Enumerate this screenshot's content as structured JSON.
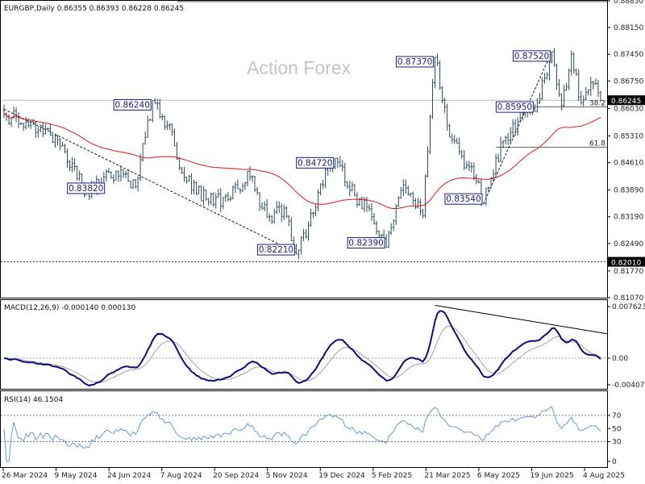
{
  "header": {
    "symbol_line": "EURGBP,Daily  0.86355 0.86393 0.86228 0.86245",
    "watermark": "Action Forex"
  },
  "colors": {
    "candle": "#2c4a5a",
    "ma": "#d81818",
    "macd": "#0c0c7c",
    "signal": "#999999",
    "rsi": "#5a8fd0",
    "label_border": "#1a1a80",
    "grid_dash": "#333333"
  },
  "chart_data": [
    {
      "type": "candlestick",
      "name": "price",
      "title": "EURGBP,Daily  0.86355 0.86393 0.86228 0.86245",
      "x_ticks": [
        "26 Mar 2024",
        "9 May 2024",
        "24 Jun 2024",
        "7 Aug 2024",
        "20 Sep 2024",
        "5 Nov 2024",
        "19 Dec 2024",
        "5 Feb 2025",
        "21 Mar 2025",
        "6 May 2025",
        "19 Jun 2025",
        "4 Aug 2025"
      ],
      "y_ticks": [
        "0.88850",
        "0.88150",
        "0.87450",
        "0.86750",
        "0.86030",
        "0.85310",
        "0.84610",
        "0.83890",
        "0.83190",
        "0.82490",
        "0.81770",
        "0.81070"
      ],
      "ylim": [
        0.8107,
        0.8885
      ],
      "current_price": "0.86245",
      "current_value": 0.86245,
      "support_level": "0.82010",
      "support_value": 0.8201,
      "key_points": [
        {
          "label": "0.83820",
          "value": 0.8382,
          "anchor": "low",
          "i": 34
        },
        {
          "label": "0.86240",
          "value": 0.8624,
          "anchor": "high",
          "i": 61
        },
        {
          "label": "0.82210",
          "value": 0.8221,
          "anchor": "low",
          "i": 120
        },
        {
          "label": "0.84720",
          "value": 0.8472,
          "anchor": "high",
          "i": 136
        },
        {
          "label": "0.82390",
          "value": 0.8239,
          "anchor": "low",
          "i": 157
        },
        {
          "label": "0.87370",
          "value": 0.8737,
          "anchor": "high",
          "i": 177
        },
        {
          "label": "0.83540",
          "value": 0.8354,
          "anchor": "low",
          "i": 197
        },
        {
          "label": "0.85950",
          "value": 0.8595,
          "anchor": "low",
          "i": 218
        },
        {
          "label": "0.87520",
          "value": 0.8752,
          "anchor": "high",
          "i": 225
        }
      ],
      "fib_levels": [
        {
          "label": "61.8",
          "value": 0.8883
        },
        {
          "label": "38.2",
          "value": 0.8607
        },
        {
          "label": "61.8",
          "value": 0.8501
        }
      ],
      "path": [
        [
          0,
          0.8589
        ],
        [
          10,
          0.8558
        ],
        [
          22,
          0.8521
        ],
        [
          34,
          0.8382
        ],
        [
          46,
          0.8438
        ],
        [
          54,
          0.8398
        ],
        [
          61,
          0.8624
        ],
        [
          67,
          0.8559
        ],
        [
          75,
          0.8412
        ],
        [
          84,
          0.8358
        ],
        [
          93,
          0.8366
        ],
        [
          100,
          0.8438
        ],
        [
          108,
          0.8318
        ],
        [
          115,
          0.8342
        ],
        [
          120,
          0.8221
        ],
        [
          127,
          0.8328
        ],
        [
          133,
          0.8448
        ],
        [
          136,
          0.8472
        ],
        [
          142,
          0.8388
        ],
        [
          149,
          0.8344
        ],
        [
          157,
          0.8239
        ],
        [
          163,
          0.8388
        ],
        [
          168,
          0.8362
        ],
        [
          172,
          0.8322
        ],
        [
          177,
          0.8737
        ],
        [
          182,
          0.8558
        ],
        [
          188,
          0.8478
        ],
        [
          193,
          0.8422
        ],
        [
          197,
          0.8354
        ],
        [
          205,
          0.8518
        ],
        [
          212,
          0.8578
        ],
        [
          218,
          0.8595
        ],
        [
          225,
          0.8752
        ],
        [
          229,
          0.8611
        ],
        [
          233,
          0.8745
        ],
        [
          237,
          0.8618
        ],
        [
          241,
          0.8671
        ],
        [
          245,
          0.86245
        ]
      ],
      "ma_period": 55,
      "trendlines": [
        {
          "from": [
            0,
            0.8601
          ],
          "to": [
            120,
            0.8225
          ]
        },
        {
          "from": [
            197,
            0.8354
          ],
          "to": [
            225,
            0.8752
          ]
        }
      ]
    },
    {
      "type": "line",
      "name": "macd",
      "title": "MACD(12,26,9) -0.000140 0.000130",
      "y_ticks": [
        "0.007623",
        "0.00",
        "-0.004073"
      ],
      "ylim": [
        -0.004073,
        0.007623
      ],
      "zero_line": 0,
      "series": [
        {
          "name": "MACD",
          "values": [
            -0.00014
          ]
        },
        {
          "name": "Signal",
          "values": [
            0.00013
          ]
        }
      ],
      "trendline": {
        "from": [
          177,
          0.0078
        ],
        "to": [
          245,
          0.0036
        ]
      }
    },
    {
      "type": "line",
      "name": "rsi",
      "title": "RSI(14) 46.1504",
      "period": 14,
      "y_ticks": [
        "70",
        "50",
        "30",
        "0"
      ],
      "ylim": [
        0,
        100
      ],
      "levels": [
        70,
        30
      ],
      "series": [
        {
          "name": "RSI",
          "values": [
            46.1504
          ]
        }
      ]
    }
  ]
}
